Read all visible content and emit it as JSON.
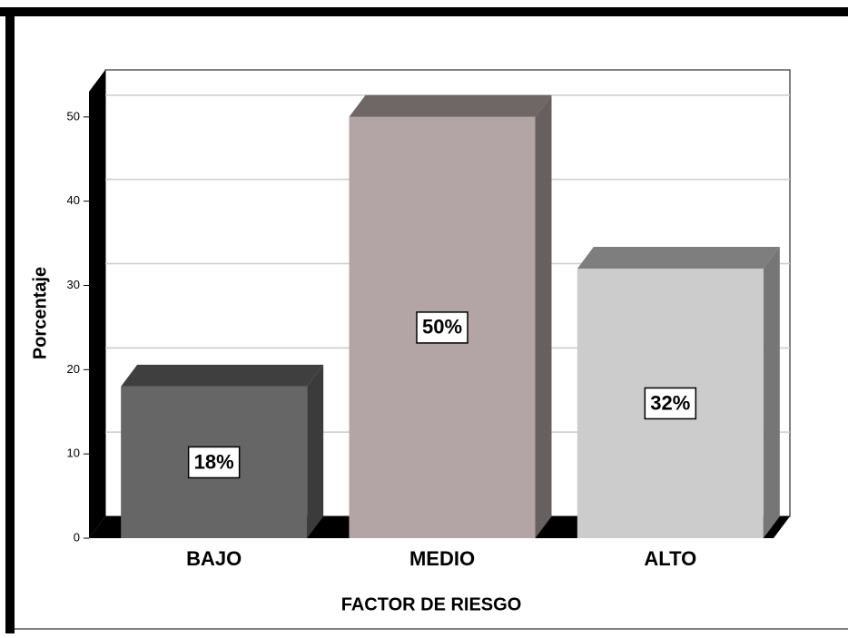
{
  "chart_data": {
    "type": "bar3d",
    "xlabel": "FACTOR DE RIESGO",
    "ylabel": "Porcentaje",
    "categories": [
      "BAJO",
      "MEDIO",
      "ALTO"
    ],
    "values": [
      18,
      50,
      32
    ],
    "value_labels": [
      "18%",
      "50%",
      "32%"
    ],
    "colors": [
      "#666666",
      "#b3a5a5",
      "#cccccc"
    ],
    "ylim": [
      0,
      53
    ],
    "yticks": [
      0,
      10,
      20,
      30,
      40,
      50
    ],
    "grid": true
  }
}
